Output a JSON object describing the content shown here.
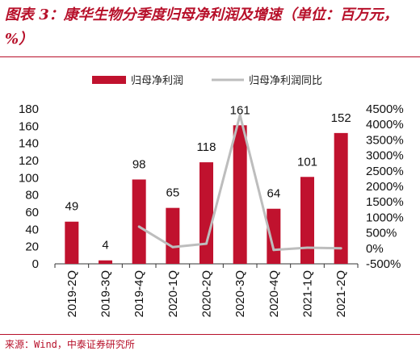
{
  "header": {
    "title": "图表 3：康华生物分季度归母净利润及增速（单位：百万元，%）"
  },
  "footer": {
    "source": "来源：Wind，中泰证券研究所"
  },
  "chart_data": {
    "type": "bar",
    "categories": [
      "2019-2Q",
      "2019-3Q",
      "2019-4Q",
      "2020-1Q",
      "2020-2Q",
      "2020-3Q",
      "2020-4Q",
      "2021-1Q",
      "2021-2Q"
    ],
    "series": [
      {
        "name": "归母净利润",
        "type": "bar",
        "axis": "left",
        "color": "#c0122e",
        "values": [
          49,
          4,
          98,
          65,
          118,
          161,
          64,
          101,
          152
        ],
        "data_labels": [
          "49",
          "4",
          "98",
          "65",
          "118",
          "161",
          "64",
          "101",
          "152"
        ]
      },
      {
        "name": "归母净利润同比",
        "type": "line",
        "axis": "right",
        "color": "#bdbdbd",
        "values": [
          null,
          null,
          700,
          40,
          150,
          4300,
          -50,
          20,
          0
        ]
      }
    ],
    "left_axis": {
      "min": 0,
      "max": 180,
      "ticks": [
        "0",
        "20",
        "40",
        "60",
        "80",
        "100",
        "120",
        "140",
        "160",
        "180"
      ]
    },
    "right_axis": {
      "min": -500,
      "max": 4500,
      "ticks": [
        "-500%",
        "0%",
        "500%",
        "1000%",
        "1500%",
        "2000%",
        "2500%",
        "3000%",
        "3500%",
        "4000%",
        "4500%"
      ]
    },
    "legend_position": "top",
    "grid": false
  }
}
